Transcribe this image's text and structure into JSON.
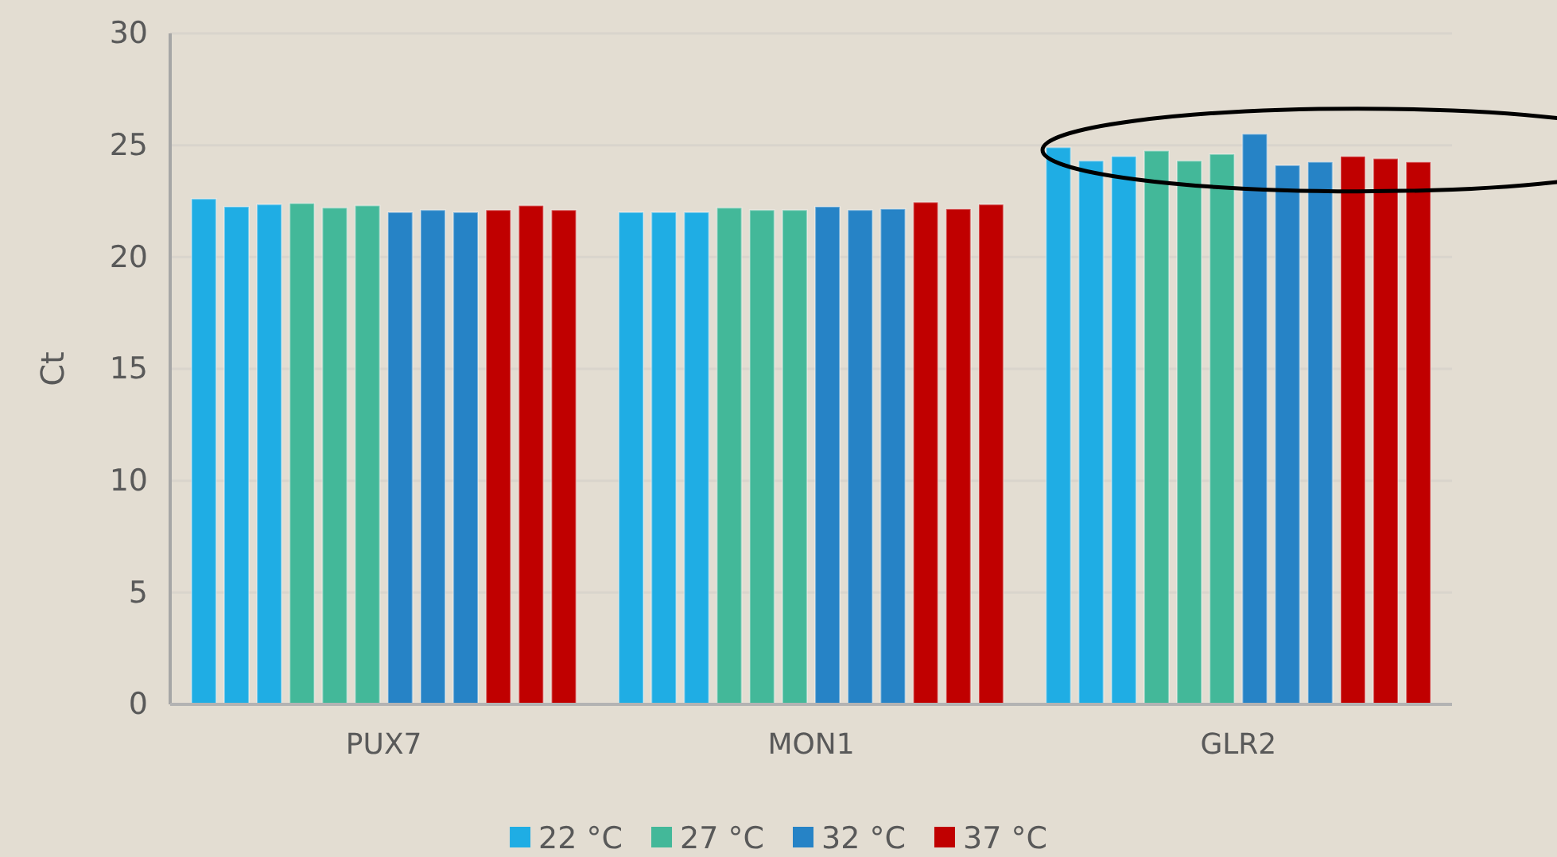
{
  "chart_data": {
    "type": "bar",
    "ylabel": "Ct",
    "categories": [
      "PUX7",
      "MON1",
      "GLR2"
    ],
    "ylim": [
      0,
      30
    ],
    "yticks": [
      0,
      5,
      10,
      15,
      20,
      25,
      30
    ],
    "grid": "y",
    "legend": "bottom",
    "series": [
      {
        "name": "22 °C",
        "color": "#1fade4",
        "values": [
          22.6,
          22.0,
          24.9
        ]
      },
      {
        "color": "#1fade4",
        "values": [
          22.25,
          22.0,
          24.3
        ]
      },
      {
        "color": "#1fade4",
        "values": [
          22.35,
          22.0,
          24.5
        ]
      },
      {
        "name": "27 °C",
        "color": "#43b899",
        "values": [
          22.4,
          22.2,
          24.75
        ]
      },
      {
        "color": "#43b899",
        "values": [
          22.2,
          22.1,
          24.3
        ]
      },
      {
        "color": "#43b899",
        "values": [
          22.3,
          22.1,
          24.6
        ]
      },
      {
        "name": "32 °C",
        "color": "#2683c6",
        "values": [
          22.0,
          22.25,
          25.5
        ]
      },
      {
        "color": "#2683c6",
        "values": [
          22.1,
          22.1,
          24.1
        ]
      },
      {
        "color": "#2683c6",
        "values": [
          22.0,
          22.15,
          24.25
        ]
      },
      {
        "name": "37 °C",
        "color": "#c00000",
        "values": [
          22.1,
          22.45,
          24.5
        ]
      },
      {
        "color": "#c00000",
        "values": [
          22.3,
          22.15,
          24.4
        ]
      },
      {
        "color": "#c00000",
        "values": [
          22.1,
          22.35,
          24.25
        ]
      }
    ]
  }
}
